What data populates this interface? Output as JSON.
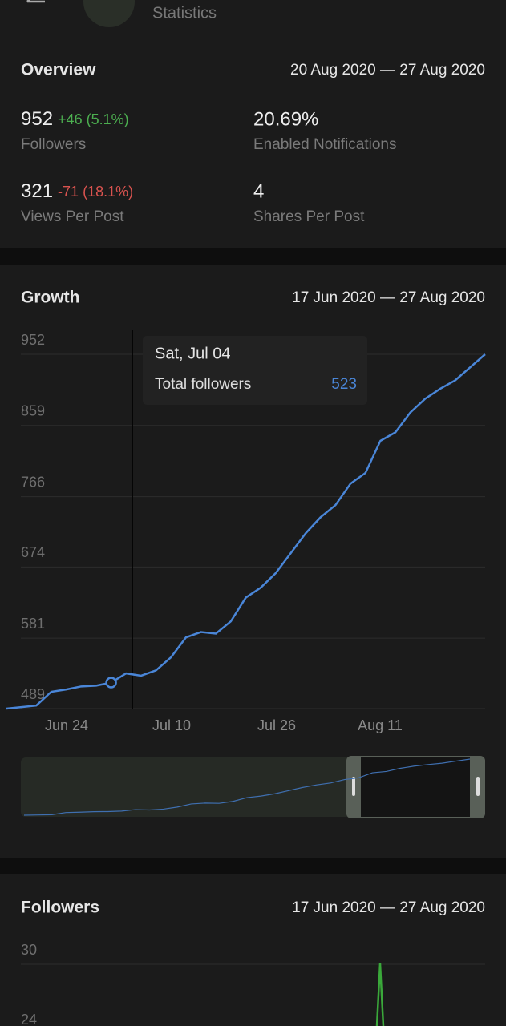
{
  "header": {
    "title": "Statistics"
  },
  "overview": {
    "title": "Overview",
    "range": "20 Aug 2020 — 27 Aug 2020",
    "stats": [
      {
        "value": "952",
        "delta": "+46 (5.1%)",
        "label": "Followers"
      },
      {
        "value": "20.69%",
        "label": "Enabled Notifications"
      },
      {
        "value": "321",
        "delta": "-71 (18.1%)",
        "label": "Views Per Post"
      },
      {
        "value": "4",
        "label": "Shares Per Post"
      }
    ]
  },
  "growth": {
    "type": "line",
    "title": "Growth",
    "range": "17 Jun 2020 — 27 Aug 2020",
    "color": "#4a86d8",
    "values": [
      489,
      491,
      493,
      511,
      514,
      518,
      519,
      523,
      535,
      532,
      539,
      556,
      582,
      589,
      587,
      603,
      634,
      647,
      666,
      692,
      718,
      739,
      755,
      783,
      797,
      839,
      850,
      876,
      894,
      907,
      918,
      935,
      952
    ],
    "ylim": [
      489,
      952
    ],
    "yticks": [
      489,
      581,
      674,
      766,
      859,
      952
    ],
    "xtick_labels": [
      "Jun 24",
      "Jul 10",
      "Jul 26",
      "Aug 11"
    ],
    "tooltip": {
      "date": "Sat, Jul 04",
      "label": "Total followers",
      "value": 523
    }
  },
  "followers": {
    "title": "Followers",
    "range": "17 Jun 2020 — 27 Aug 2020",
    "yticks": [
      30,
      24
    ]
  }
}
